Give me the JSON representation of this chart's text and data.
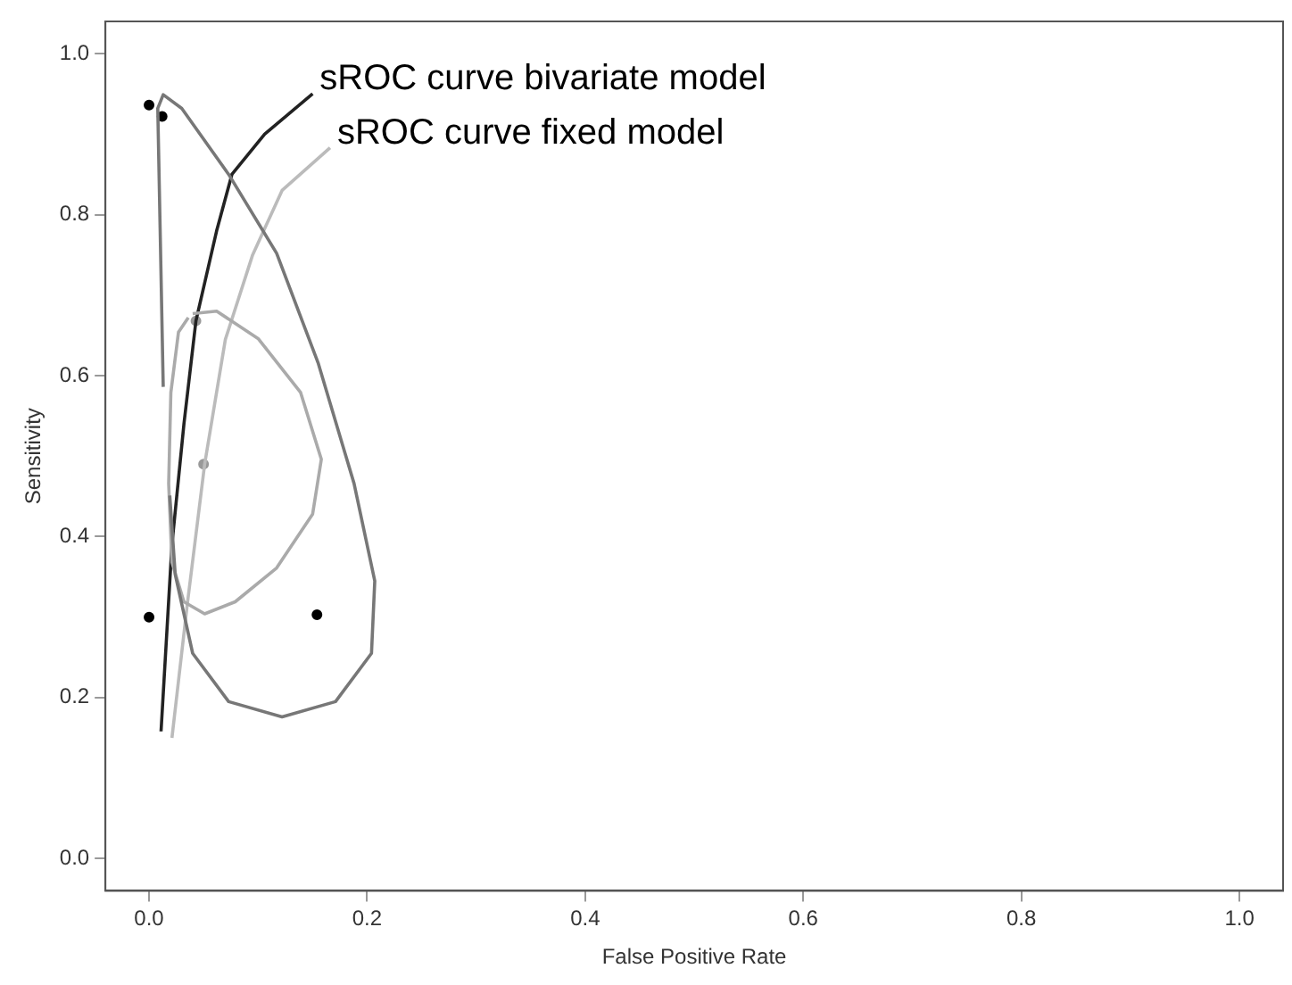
{
  "chart_data": {
    "type": "line",
    "xlabel": "False Positive Rate",
    "ylabel": "Sensitivity",
    "xlim": [
      -0.04,
      1.04
    ],
    "ylim": [
      -0.04,
      1.04
    ],
    "xticks": [
      {
        "value": 0,
        "label": "0.0"
      },
      0.2,
      0.4,
      0.6,
      0.8,
      {
        "value": 1,
        "label": "1.0"
      }
    ],
    "yticks": [
      {
        "value": 0,
        "label": "0.0"
      },
      0.2,
      0.4,
      0.6,
      0.8,
      {
        "value": 1,
        "label": "1.0"
      }
    ],
    "grid": false,
    "legend": false,
    "marker": "none",
    "line_style": "solid",
    "series": [
      {
        "color": "#777777",
        "x": [
          0.013,
          0.008,
          0.013,
          0.03,
          0.073,
          0.117,
          0.155,
          0.188,
          0.207,
          0.204,
          0.171,
          0.122,
          0.073,
          0.04,
          0.024,
          0.019
        ],
        "values": [
          0.586,
          0.932,
          0.949,
          0.932,
          0.85,
          0.752,
          0.616,
          0.466,
          0.345,
          0.255,
          0.195,
          0.176,
          0.195,
          0.255,
          0.353,
          0.451
        ]
      },
      {
        "color": "#aaaaaa",
        "x": [
          0.04,
          0.062,
          0.1,
          0.139,
          0.158,
          0.15,
          0.117,
          0.079,
          0.051,
          0.032,
          0.021,
          0.018,
          0.02,
          0.027,
          0.036
        ],
        "values": [
          0.677,
          0.68,
          0.646,
          0.579,
          0.496,
          0.428,
          0.361,
          0.319,
          0.304,
          0.319,
          0.368,
          0.466,
          0.579,
          0.654,
          0.672
        ]
      },
      {
        "name": "sROC curve bivariate model",
        "color": "#222222",
        "x": [
          0.011,
          0.021,
          0.032,
          0.043,
          0.062,
          0.076,
          0.106,
          0.15
        ],
        "values": [
          0.158,
          0.39,
          0.54,
          0.668,
          0.78,
          0.85,
          0.9,
          0.95
        ]
      },
      {
        "name": "sROC curve fixed model",
        "color": "#bbbbbb",
        "x": [
          0.021,
          0.035,
          0.051,
          0.07,
          0.095,
          0.122,
          0.166
        ],
        "values": [
          0.15,
          0.315,
          0.49,
          0.645,
          0.75,
          0.83,
          0.883
        ]
      },
      {
        "type": "scatter",
        "marker": "circle",
        "color": "#000000",
        "x": [
          0.0,
          0.012,
          0.0,
          0.154
        ],
        "values": [
          0.936,
          0.922,
          0.3,
          0.303
        ]
      },
      {
        "type": "scatter",
        "marker": "circle",
        "color": "#999999",
        "x": [
          0.043,
          0.05
        ],
        "values": [
          0.668,
          0.49
        ]
      }
    ]
  }
}
